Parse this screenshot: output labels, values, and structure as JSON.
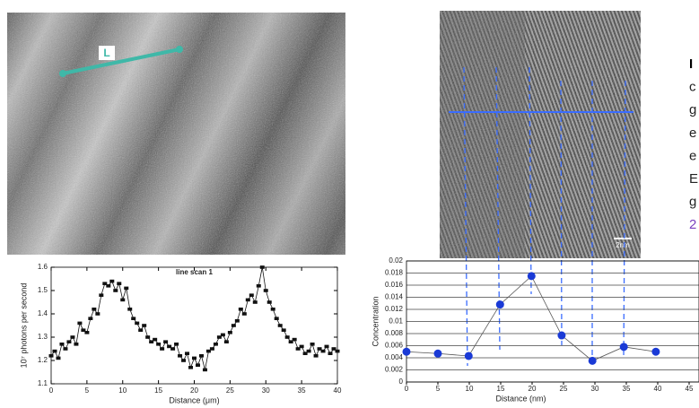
{
  "image_labels": {
    "scan_line": "L",
    "scale_bar": "2nm"
  },
  "side_text": [
    "I",
    "c",
    "g",
    "e",
    "e",
    "E",
    "g",
    "2"
  ],
  "chart_data": [
    {
      "type": "line",
      "title": "line scan 1",
      "xlabel": "Distance (μm)",
      "ylabel": "10⁷ photons per second",
      "marker": "square",
      "grid": false,
      "x": [
        0,
        0.5,
        1,
        1.5,
        2,
        2.5,
        3,
        3.5,
        4,
        4.5,
        5,
        5.5,
        6,
        6.5,
        7,
        7.5,
        8,
        8.5,
        9,
        9.5,
        10,
        10.5,
        11,
        11.5,
        12,
        12.5,
        13,
        13.5,
        14,
        14.5,
        15,
        15.5,
        16,
        16.5,
        17,
        17.5,
        18,
        18.5,
        19,
        19.5,
        20,
        20.5,
        21,
        21.5,
        22,
        22.5,
        23,
        23.5,
        24,
        24.5,
        25,
        25.5,
        26,
        26.5,
        27,
        27.5,
        28,
        28.5,
        29,
        29.5,
        30,
        30.5,
        31,
        31.5,
        32,
        32.5,
        33,
        33.5,
        34,
        34.5,
        35,
        35.5,
        36,
        36.5,
        37,
        37.5,
        38,
        38.5,
        39,
        39.5,
        40
      ],
      "series": [
        {
          "color": "#111111",
          "values": [
            1.22,
            1.24,
            1.21,
            1.27,
            1.25,
            1.28,
            1.3,
            1.27,
            1.36,
            1.33,
            1.32,
            1.38,
            1.42,
            1.4,
            1.48,
            1.53,
            1.52,
            1.54,
            1.5,
            1.53,
            1.46,
            1.51,
            1.42,
            1.38,
            1.36,
            1.33,
            1.35,
            1.3,
            1.28,
            1.29,
            1.27,
            1.25,
            1.28,
            1.26,
            1.25,
            1.27,
            1.22,
            1.2,
            1.23,
            1.17,
            1.21,
            1.18,
            1.22,
            1.16,
            1.24,
            1.25,
            1.27,
            1.3,
            1.31,
            1.28,
            1.32,
            1.35,
            1.37,
            1.42,
            1.4,
            1.46,
            1.48,
            1.45,
            1.52,
            1.6,
            1.5,
            1.45,
            1.42,
            1.38,
            1.35,
            1.33,
            1.3,
            1.28,
            1.29,
            1.25,
            1.26,
            1.23,
            1.24,
            1.27,
            1.22,
            1.25,
            1.24,
            1.26,
            1.23,
            1.25,
            1.24
          ]
        }
      ],
      "xlim": [
        0,
        40
      ],
      "xticks": [
        0,
        5,
        10,
        15,
        20,
        25,
        30,
        35,
        40
      ],
      "ylim": [
        1.1,
        1.6
      ],
      "yticks": [
        1.1,
        1.2,
        1.3,
        1.4,
        1.5,
        1.6
      ]
    },
    {
      "type": "line",
      "xlabel": "Distance (nm)",
      "ylabel": "Concentration",
      "marker": "circle",
      "grid": true,
      "x": [
        0,
        5,
        9.9,
        14.9,
        19.9,
        24.7,
        29.6,
        34.6,
        39.7
      ],
      "series": [
        {
          "color": "#1a3ad6",
          "values": [
            0.005,
            0.0047,
            0.0043,
            0.0128,
            0.0175,
            0.0077,
            0.0035,
            0.0058,
            0.005
          ]
        }
      ],
      "xlim": [
        0,
        45
      ],
      "xticks": [
        0,
        5,
        10,
        15,
        20,
        25,
        30,
        35,
        40,
        45
      ],
      "ylim": [
        0,
        0.02
      ],
      "yticks": [
        0,
        0.002,
        0.004,
        0.006,
        0.008,
        0.01,
        0.012,
        0.014,
        0.016,
        0.018,
        0.02
      ]
    }
  ]
}
